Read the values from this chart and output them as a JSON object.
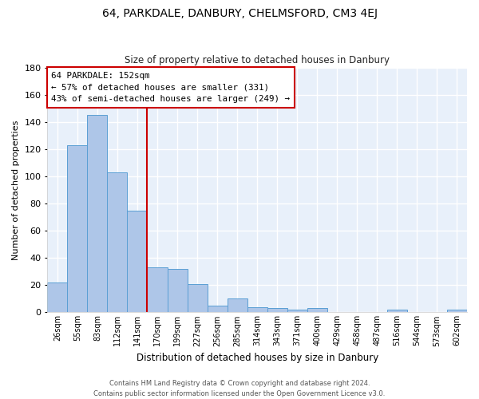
{
  "title": "64, PARKDALE, DANBURY, CHELMSFORD, CM3 4EJ",
  "subtitle": "Size of property relative to detached houses in Danbury",
  "xlabel": "Distribution of detached houses by size in Danbury",
  "ylabel": "Number of detached properties",
  "bar_labels": [
    "26sqm",
    "55sqm",
    "83sqm",
    "112sqm",
    "141sqm",
    "170sqm",
    "199sqm",
    "227sqm",
    "256sqm",
    "285sqm",
    "314sqm",
    "343sqm",
    "371sqm",
    "400sqm",
    "429sqm",
    "458sqm",
    "487sqm",
    "516sqm",
    "544sqm",
    "573sqm",
    "602sqm"
  ],
  "bar_values": [
    22,
    123,
    145,
    103,
    75,
    33,
    32,
    21,
    5,
    10,
    4,
    3,
    2,
    3,
    0,
    0,
    0,
    2,
    0,
    0,
    2
  ],
  "bar_color": "#aec6e8",
  "bar_edgecolor": "#5a9fd4",
  "bg_color": "#e8f0fa",
  "grid_color": "#ffffff",
  "annotation_box_edgecolor": "#cc0000",
  "annotation_line_color": "#cc0000",
  "ylim": [
    0,
    180
  ],
  "yticks": [
    0,
    20,
    40,
    60,
    80,
    100,
    120,
    140,
    160,
    180
  ],
  "annotation_line_index": 4.5,
  "annotation_text_line1": "64 PARKDALE: 152sqm",
  "annotation_text_line2": "← 57% of detached houses are smaller (331)",
  "annotation_text_line3": "43% of semi-detached houses are larger (249) →",
  "footer_line1": "Contains HM Land Registry data © Crown copyright and database right 2024.",
  "footer_line2": "Contains public sector information licensed under the Open Government Licence v3.0."
}
